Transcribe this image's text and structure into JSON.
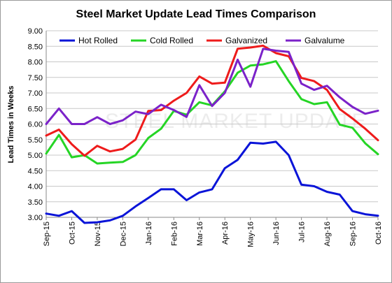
{
  "chart_data": {
    "type": "line",
    "title": "Steel Market Update Lead Times Comparison",
    "ylabel": "Lead Times in Weeks",
    "xlabel": "",
    "watermark": "STEEL MARKET UPDATE",
    "ylim": [
      3.0,
      9.0
    ],
    "y_ticks": [
      "3.00",
      "3.50",
      "4.00",
      "4.50",
      "5.00",
      "5.50",
      "6.00",
      "6.50",
      "7.00",
      "7.50",
      "8.00",
      "8.50",
      "9.00"
    ],
    "x_tick_labels": [
      "Sep-15",
      "Oct-15",
      "Nov-15",
      "Dec-15",
      "Jan-16",
      "Feb-16",
      "Mar-16",
      "Apr-16",
      "May-16",
      "Jun-16",
      "Jul-16",
      "Aug-16",
      "Sep-16",
      "Oct-16"
    ],
    "legend_position": "top",
    "grid": true,
    "series": [
      {
        "name": "Hot Rolled",
        "color": "#0a14d8",
        "values": [
          3.12,
          3.05,
          3.2,
          2.82,
          2.84,
          2.9,
          3.05,
          3.35,
          3.62,
          3.9,
          3.9,
          3.55,
          3.8,
          3.9,
          4.58,
          4.85,
          5.4,
          5.37,
          5.43,
          5.0,
          4.05,
          4.0,
          3.82,
          3.73,
          3.2,
          3.1,
          3.05
        ]
      },
      {
        "name": "Cold Rolled",
        "color": "#25d525",
        "values": [
          5.05,
          5.65,
          4.93,
          5.0,
          4.73,
          4.76,
          4.78,
          5.0,
          5.55,
          5.85,
          6.42,
          6.3,
          6.7,
          6.6,
          7.05,
          7.65,
          7.88,
          7.92,
          8.02,
          7.38,
          6.8,
          6.64,
          6.7,
          5.98,
          5.88,
          5.38,
          5.03
        ]
      },
      {
        "name": "Galvanized",
        "color": "#ee1b1b",
        "values": [
          5.63,
          5.82,
          5.35,
          4.98,
          5.3,
          5.12,
          5.2,
          5.5,
          6.42,
          6.45,
          6.75,
          7.0,
          7.53,
          7.3,
          7.33,
          8.42,
          8.46,
          8.52,
          8.28,
          8.18,
          7.48,
          7.38,
          7.1,
          6.48,
          6.18,
          5.85,
          5.48
        ]
      },
      {
        "name": "Galvalume",
        "color": "#7b22c9",
        "values": [
          6.0,
          6.5,
          6.0,
          6.0,
          6.22,
          6.0,
          6.12,
          6.4,
          6.32,
          6.62,
          6.45,
          6.23,
          7.25,
          6.58,
          7.0,
          8.07,
          7.2,
          8.42,
          8.36,
          8.32,
          7.3,
          7.1,
          7.23,
          6.86,
          6.55,
          6.33,
          6.43
        ]
      }
    ]
  }
}
